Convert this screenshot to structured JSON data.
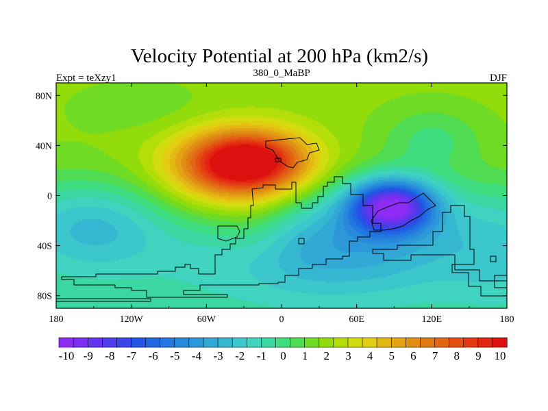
{
  "chart_data": {
    "type": "heatmap",
    "title": "Velocity Potential at 200 hPa (km2/s)",
    "subtitle_left": "Expt = teXzy1",
    "subtitle_center": "380_0_MaBP",
    "subtitle_right": "DJF",
    "x_ticks": [
      {
        "value": -180,
        "label": "180"
      },
      {
        "value": -120,
        "label": "120W"
      },
      {
        "value": -60,
        "label": "60W"
      },
      {
        "value": 0,
        "label": "0"
      },
      {
        "value": 60,
        "label": "60E"
      },
      {
        "value": 120,
        "label": "120E"
      },
      {
        "value": 180,
        "label": "180"
      }
    ],
    "y_ticks": [
      {
        "value": 80,
        "label": "80N"
      },
      {
        "value": 40,
        "label": "40N"
      },
      {
        "value": 0,
        "label": "0"
      },
      {
        "value": -40,
        "label": "40S"
      },
      {
        "value": -80,
        "label": "80S"
      }
    ],
    "xlim": [
      -180,
      180
    ],
    "ylim": [
      -90,
      90
    ],
    "colorbar": {
      "labels": [
        "-10",
        "-9",
        "-8",
        "-7",
        "-6",
        "-5",
        "-4",
        "-3",
        "-2",
        "-1",
        "0",
        "1",
        "2",
        "3",
        "4",
        "5",
        "6",
        "7",
        "8",
        "9",
        "10"
      ],
      "colors": [
        "#8f2cf3",
        "#7a2ff1",
        "#6535ee",
        "#503bea",
        "#3b44e8",
        "#2454e4",
        "#1f68e2",
        "#2278e0",
        "#2788dc",
        "#2c98da",
        "#31a8d6",
        "#36b7d1",
        "#3cc7cc",
        "#3fd3c0",
        "#3ad7a2",
        "#3fdb7f",
        "#4fdb52",
        "#6fdb25",
        "#91dc0a",
        "#b3de0a",
        "#d1dd0e",
        "#e2cd12",
        "#e5b913",
        "#e3a314",
        "#e08f14",
        "#e17a15",
        "#e26514",
        "#e34f13",
        "#e33912",
        "#e22410",
        "#dd1010"
      ]
    },
    "value_range": [
      -10,
      10
    ],
    "centers": [
      {
        "name": "divergence-max",
        "lon": -28,
        "lat": 27,
        "value": 9.6
      },
      {
        "name": "convergence-min",
        "lon": 88,
        "lat": -8,
        "value": -9.8
      }
    ],
    "grid": false,
    "colorbar_position": "bottom"
  }
}
